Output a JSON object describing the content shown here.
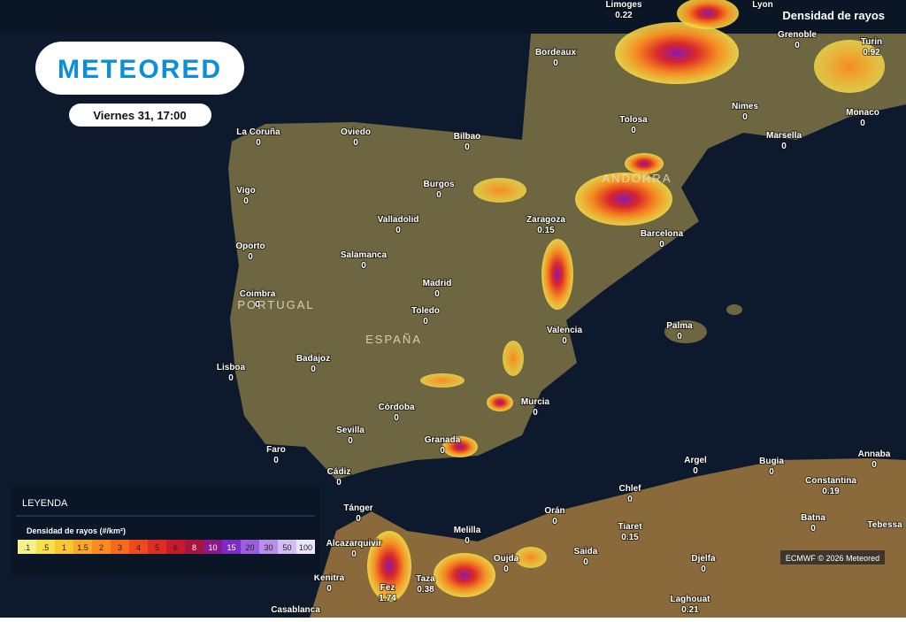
{
  "header": {
    "logo": "METEORED",
    "datetime": "Viernes 31, 17:00",
    "layer": "Densidad de rayos"
  },
  "cities": [
    {
      "name": "Limoges",
      "value": 0.22
    },
    {
      "name": "Lyon"
    },
    {
      "name": "Bordeaux",
      "value": 0
    },
    {
      "name": "Grenoble",
      "value": 0
    },
    {
      "name": "Turin",
      "value": 0.92
    },
    {
      "name": "Tolosa",
      "value": 0
    },
    {
      "name": "Nimes",
      "value": 0
    },
    {
      "name": "Marsella",
      "value": 0
    },
    {
      "name": "Monaco",
      "value": 0
    },
    {
      "name": "La Coruña",
      "value": 0
    },
    {
      "name": "Oviedo",
      "value": 0
    },
    {
      "name": "Bilbao",
      "value": 0
    },
    {
      "name": "Burgos",
      "value": 0
    },
    {
      "name": "Zaragoza",
      "value": 0.15
    },
    {
      "name": "Vigo",
      "value": 0
    },
    {
      "name": "Valladolid",
      "value": 0
    },
    {
      "name": "Barcelona",
      "value": 0
    },
    {
      "name": "Oporto",
      "value": 0
    },
    {
      "name": "Salamanca",
      "value": 0
    },
    {
      "name": "Madrid",
      "value": 0
    },
    {
      "name": "Coimbra",
      "value": 0
    },
    {
      "name": "Toledo",
      "value": 0
    },
    {
      "name": "Valencia",
      "value": 0
    },
    {
      "name": "Palma",
      "value": 0
    },
    {
      "name": "Badajoz",
      "value": 0
    },
    {
      "name": "Lisboa",
      "value": 0
    },
    {
      "name": "Córdoba",
      "value": 0
    },
    {
      "name": "Murcia",
      "value": 0
    },
    {
      "name": "Sevilla",
      "value": 0
    },
    {
      "name": "Granada",
      "value": 0
    },
    {
      "name": "Faro",
      "value": 0
    },
    {
      "name": "Cádiz",
      "value": 0
    },
    {
      "name": "Argel",
      "value": 0
    },
    {
      "name": "Bugia",
      "value": 0
    },
    {
      "name": "Annaba",
      "value": 0
    },
    {
      "name": "Constantina",
      "value": 0.19
    },
    {
      "name": "Chlef",
      "value": 0
    },
    {
      "name": "Tánger",
      "value": 0
    },
    {
      "name": "Orán",
      "value": 0
    },
    {
      "name": "Melilla",
      "value": 0
    },
    {
      "name": "Tiaret",
      "value": 0.15
    },
    {
      "name": "Batna",
      "value": 0
    },
    {
      "name": "Tebessa"
    },
    {
      "name": "Alcazarquivir",
      "value": 0
    },
    {
      "name": "Saida",
      "value": 0
    },
    {
      "name": "Oujda",
      "value": 0
    },
    {
      "name": "Djelfa",
      "value": 0
    },
    {
      "name": "Kenitra",
      "value": 0
    },
    {
      "name": "Fez",
      "value": 1.74
    },
    {
      "name": "Taza",
      "value": 0.38
    },
    {
      "name": "Laghouat",
      "value": 0.21
    },
    {
      "name": "Casablanca"
    }
  ],
  "countries": [
    "PORTUGAL",
    "ESPAÑA",
    "ANDORRA"
  ],
  "legend": {
    "title": "LEYENDA",
    "subtitle": "Densidad de rayos (#/km²)",
    "labels": [
      ".1",
      ".5",
      "1",
      "1.5",
      "2",
      "3",
      "4",
      "5",
      "6",
      "8",
      "10",
      "15",
      "20",
      "30",
      "50",
      "100"
    ],
    "colors": [
      "#f5f08c",
      "#f8e04a",
      "#fbc52e",
      "#fca727",
      "#fb8a22",
      "#f66a1e",
      "#ef4a1f",
      "#e02c23",
      "#c81a2d",
      "#a61440",
      "#8a1a86",
      "#7c2bc8",
      "#9b5ee0",
      "#b88ee8",
      "#d4bdf0",
      "#ece4f8"
    ]
  },
  "credit": "ECMWF © 2026 Meteored"
}
